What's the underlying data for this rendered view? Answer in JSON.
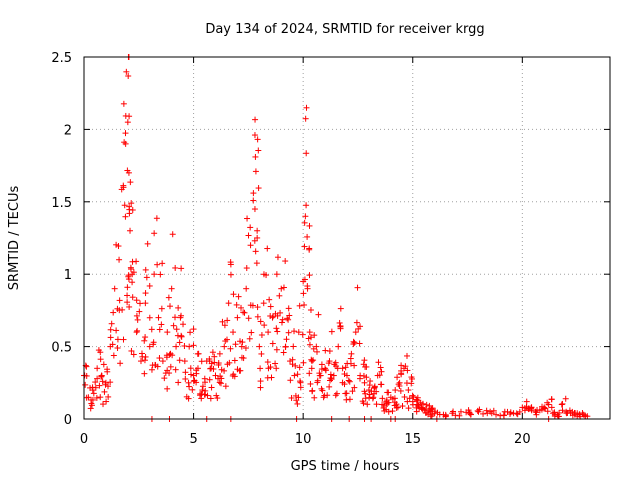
{
  "chart_data": {
    "type": "scatter",
    "title": "Day 134 of 2024, SRMTID for receiver krgg",
    "xlabel": "GPS time / hours",
    "ylabel": "SRMTID / TECUs",
    "xlim": [
      0,
      24
    ],
    "ylim": [
      0,
      2.5
    ],
    "xticks": [
      0,
      5,
      10,
      15,
      20
    ],
    "xtick_labels": [
      "0",
      "5",
      "10",
      "15",
      "20"
    ],
    "yticks": [
      0,
      0.5,
      1,
      1.5,
      2,
      2.5
    ],
    "ytick_labels": [
      "0",
      "0.5",
      "1",
      "1.5",
      "2",
      "2.5"
    ],
    "grid": true,
    "marker": "+",
    "color": "#ff0000",
    "series": [
      {
        "name": "SRMTID",
        "x": [
          0.0,
          0.2,
          0.4,
          0.6,
          0.8,
          1.0,
          1.2,
          1.4,
          1.6,
          1.8,
          1.9,
          2.0,
          2.05,
          2.1,
          2.2,
          2.4,
          2.6,
          2.8,
          3.0,
          3.2,
          3.4,
          3.6,
          3.8,
          4.0,
          4.2,
          4.4,
          4.6,
          4.8,
          5.0,
          5.2,
          5.4,
          5.6,
          5.8,
          6.0,
          6.2,
          6.4,
          6.6,
          6.8,
          7.0,
          7.2,
          7.4,
          7.6,
          7.8,
          7.9,
          8.0,
          8.2,
          8.4,
          8.6,
          8.8,
          9.0,
          9.2,
          9.4,
          9.6,
          9.8,
          10.0,
          10.1,
          10.2,
          10.3,
          10.4,
          10.6,
          10.8,
          11.0,
          11.2,
          11.4,
          11.6,
          11.8,
          12.0,
          12.2,
          12.4,
          12.6,
          12.8,
          13.0,
          13.2,
          13.4,
          13.6,
          13.8,
          14.0,
          14.2,
          14.4,
          14.6,
          14.8,
          15.0,
          15.2,
          15.4,
          15.6,
          15.8,
          16.0,
          16.4,
          16.8,
          17.2,
          17.6,
          18.0,
          18.4,
          18.8,
          19.2,
          19.6,
          20.0,
          20.2,
          20.4,
          20.6,
          20.8,
          21.0,
          21.2,
          21.4,
          21.6,
          21.8,
          22.0,
          22.2,
          22.4,
          22.6,
          22.8
        ],
        "y": [
          0.3,
          0.15,
          0.2,
          0.35,
          0.3,
          0.25,
          0.5,
          0.9,
          1.1,
          1.6,
          1.9,
          2.05,
          1.7,
          1.3,
          1.0,
          0.6,
          0.4,
          0.8,
          0.5,
          1.0,
          0.7,
          0.4,
          0.6,
          0.9,
          0.5,
          0.7,
          0.4,
          0.5,
          0.3,
          0.35,
          0.2,
          0.4,
          0.35,
          0.3,
          0.45,
          0.5,
          0.8,
          0.6,
          0.7,
          0.5,
          0.9,
          1.2,
          1.45,
          1.3,
          0.5,
          0.8,
          0.6,
          0.7,
          1.0,
          0.9,
          0.5,
          0.4,
          0.3,
          0.6,
          0.95,
          1.4,
          0.9,
          0.6,
          0.4,
          0.5,
          0.3,
          0.35,
          0.4,
          0.3,
          0.5,
          0.35,
          0.3,
          0.45,
          0.6,
          0.3,
          0.25,
          0.2,
          0.15,
          0.3,
          0.1,
          0.12,
          0.15,
          0.2,
          0.25,
          0.35,
          0.2,
          0.12,
          0.1,
          0.08,
          0.07,
          0.05,
          0.04,
          0.03,
          0.04,
          0.05,
          0.04,
          0.05,
          0.04,
          0.03,
          0.05,
          0.04,
          0.08,
          0.12,
          0.07,
          0.05,
          0.06,
          0.08,
          0.1,
          0.04,
          0.03,
          0.1,
          0.05,
          0.04,
          0.03,
          0.03,
          0.03
        ]
      }
    ],
    "zero_markers_x": [
      3.1,
      3.9,
      5.6,
      6.7,
      9.7,
      11.3,
      12.1,
      12.8,
      13.1,
      14.0,
      14.2,
      16.1,
      21.2
    ]
  }
}
